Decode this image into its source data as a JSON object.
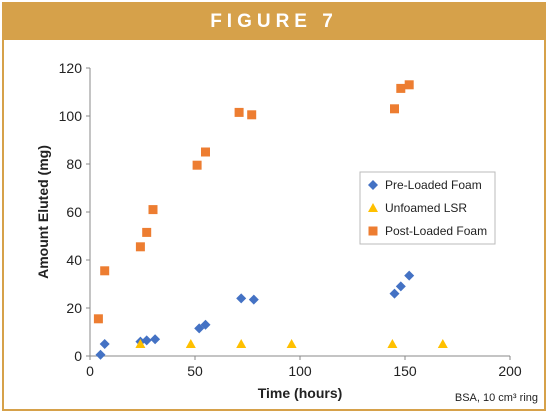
{
  "figure_label": "FIGURE 7",
  "colors": {
    "accent": "#d6a14a"
  },
  "chart_data": {
    "type": "scatter",
    "xlabel": "Time (hours)",
    "ylabel": "Amount Eluted (mg)",
    "xlim": [
      0,
      200
    ],
    "ylim": [
      0,
      120
    ],
    "xticks": [
      0,
      50,
      100,
      150,
      200
    ],
    "yticks": [
      0,
      20,
      40,
      60,
      80,
      100,
      120
    ],
    "grid": false,
    "legend_position": "right",
    "note": "BSA, 10 cm³ ring",
    "series": [
      {
        "name": "Pre-Loaded Foam",
        "marker": "diamond",
        "color": "#4472c4",
        "points": [
          [
            5,
            0.5
          ],
          [
            7,
            5
          ],
          [
            24,
            6
          ],
          [
            27,
            6.5
          ],
          [
            31,
            7
          ],
          [
            52,
            11.5
          ],
          [
            55,
            13
          ],
          [
            72,
            24
          ],
          [
            78,
            23.5
          ],
          [
            145,
            26
          ],
          [
            148,
            29
          ],
          [
            152,
            33.5
          ]
        ]
      },
      {
        "name": "Unfoamed LSR",
        "marker": "triangle",
        "color": "#ffc000",
        "points": [
          [
            24,
            5
          ],
          [
            48,
            5
          ],
          [
            72,
            5
          ],
          [
            96,
            5
          ],
          [
            144,
            5
          ],
          [
            168,
            5
          ]
        ]
      },
      {
        "name": "Post-Loaded Foam",
        "marker": "square",
        "color": "#ed7d31",
        "points": [
          [
            4,
            15.5
          ],
          [
            7,
            35.5
          ],
          [
            24,
            45.5
          ],
          [
            27,
            51.5
          ],
          [
            30,
            61
          ],
          [
            51,
            79.5
          ],
          [
            55,
            85
          ],
          [
            71,
            101.5
          ],
          [
            77,
            100.5
          ],
          [
            145,
            103
          ],
          [
            148,
            111.5
          ],
          [
            152,
            113
          ]
        ]
      }
    ]
  }
}
